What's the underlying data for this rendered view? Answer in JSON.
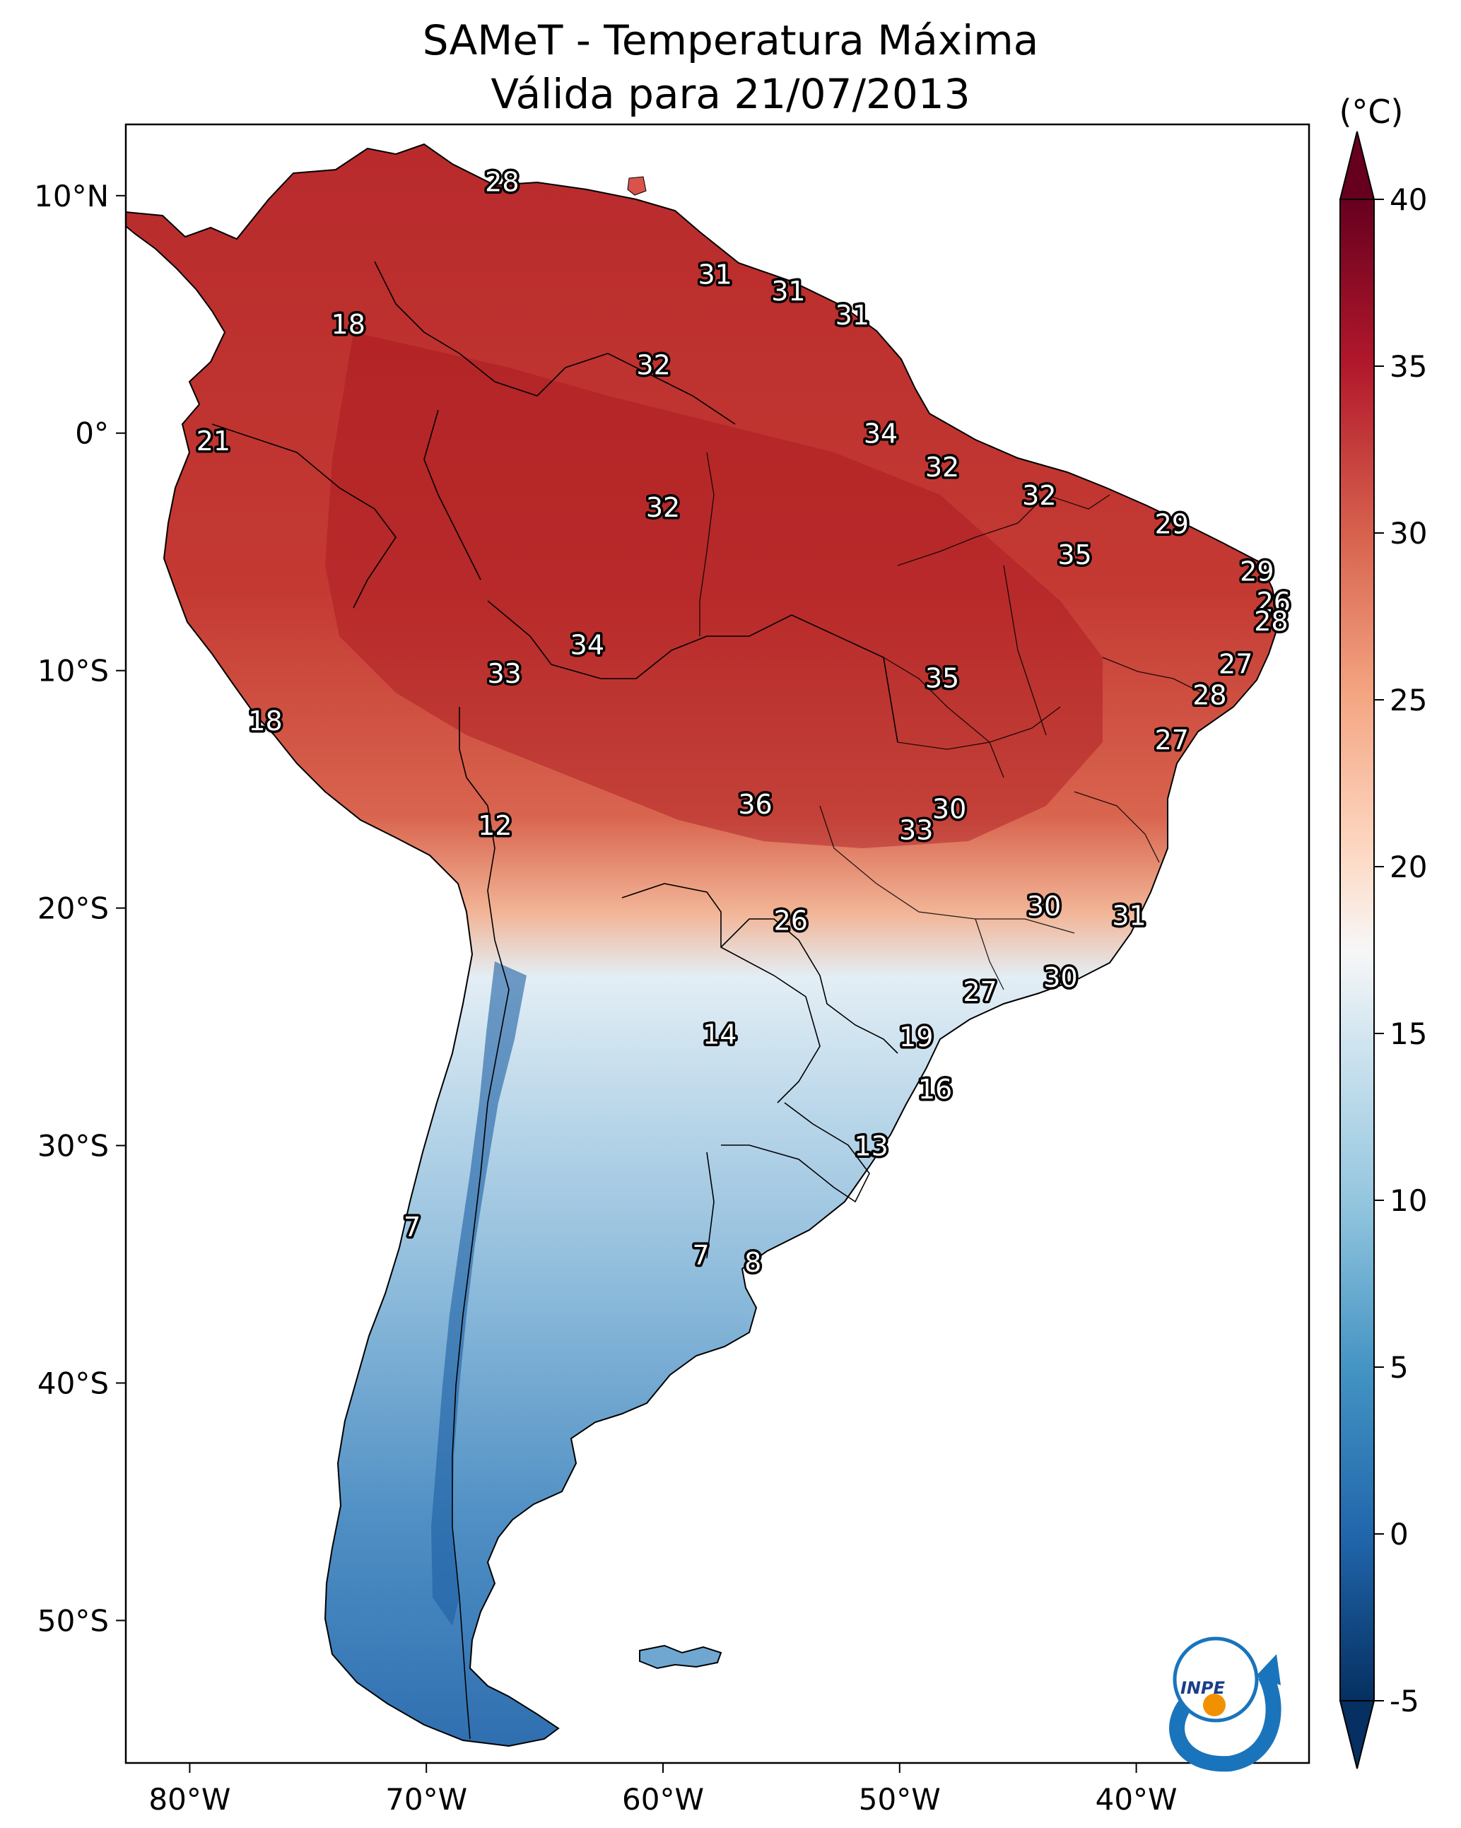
{
  "title": "SAMeT - Temperatura Máxima",
  "subtitle": "Válida para 21/07/2013",
  "colorbar": {
    "unit": "(°C)",
    "ticks": [
      -5,
      0,
      5,
      10,
      15,
      20,
      25,
      30,
      35,
      40
    ],
    "range": [
      -5,
      40
    ],
    "extend": "both",
    "colors": [
      "#053061",
      "#2166ac",
      "#4393c3",
      "#92c5de",
      "#d1e5f0",
      "#f7f7f7",
      "#fddbc7",
      "#f4a582",
      "#d6604d",
      "#b2182b",
      "#67001f"
    ]
  },
  "axes": {
    "lon_labels": [
      "80°W",
      "70°W",
      "60°W",
      "50°W",
      "40°W"
    ],
    "lon_values": [
      -80,
      -70,
      -60,
      -50,
      -40
    ],
    "lat_labels": [
      "10°N",
      "0°",
      "10°S",
      "20°S",
      "30°S",
      "40°S",
      "50°S"
    ],
    "lat_values": [
      10,
      0,
      -10,
      -20,
      -30,
      -40,
      -50
    ],
    "lon_range": [
      -82.7,
      -32.7
    ],
    "lat_range": [
      -56,
      13
    ]
  },
  "station_labels": [
    {
      "value": "28",
      "lon": -66.8,
      "lat": 10.6
    },
    {
      "value": "31",
      "lon": -57.8,
      "lat": 6.7
    },
    {
      "value": "31",
      "lon": -54.7,
      "lat": 6.0
    },
    {
      "value": "31",
      "lon": -52.0,
      "lat": 5.0
    },
    {
      "value": "18",
      "lon": -73.3,
      "lat": 4.6
    },
    {
      "value": "32",
      "lon": -60.4,
      "lat": 2.9
    },
    {
      "value": "21",
      "lon": -79.0,
      "lat": -0.3
    },
    {
      "value": "34",
      "lon": -50.8,
      "lat": 0.0
    },
    {
      "value": "32",
      "lon": -48.2,
      "lat": -1.4
    },
    {
      "value": "32",
      "lon": -60.0,
      "lat": -3.1
    },
    {
      "value": "32",
      "lon": -44.1,
      "lat": -2.6
    },
    {
      "value": "29",
      "lon": -38.5,
      "lat": -3.8
    },
    {
      "value": "35",
      "lon": -42.6,
      "lat": -5.1
    },
    {
      "value": "29",
      "lon": -34.9,
      "lat": -5.8
    },
    {
      "value": "26",
      "lon": -34.2,
      "lat": -7.1
    },
    {
      "value": "28",
      "lon": -34.3,
      "lat": -7.9
    },
    {
      "value": "34",
      "lon": -63.2,
      "lat": -8.9
    },
    {
      "value": "33",
      "lon": -66.7,
      "lat": -10.1
    },
    {
      "value": "35",
      "lon": -48.2,
      "lat": -10.3
    },
    {
      "value": "27",
      "lon": -35.8,
      "lat": -9.7
    },
    {
      "value": "28",
      "lon": -36.9,
      "lat": -11.0
    },
    {
      "value": "18",
      "lon": -76.8,
      "lat": -12.1
    },
    {
      "value": "27",
      "lon": -38.5,
      "lat": -12.9
    },
    {
      "value": "36",
      "lon": -56.1,
      "lat": -15.6
    },
    {
      "value": "30",
      "lon": -47.9,
      "lat": -15.8
    },
    {
      "value": "33",
      "lon": -49.3,
      "lat": -16.7
    },
    {
      "value": "12",
      "lon": -67.1,
      "lat": -16.5
    },
    {
      "value": "26",
      "lon": -54.6,
      "lat": -20.5
    },
    {
      "value": "30",
      "lon": -43.9,
      "lat": -19.9
    },
    {
      "value": "31",
      "lon": -40.3,
      "lat": -20.3
    },
    {
      "value": "30",
      "lon": -43.2,
      "lat": -22.9
    },
    {
      "value": "27",
      "lon": -46.6,
      "lat": -23.5
    },
    {
      "value": "14",
      "lon": -57.6,
      "lat": -25.3
    },
    {
      "value": "19",
      "lon": -49.3,
      "lat": -25.4
    },
    {
      "value": "16",
      "lon": -48.5,
      "lat": -27.6
    },
    {
      "value": "13",
      "lon": -51.2,
      "lat": -30.0
    },
    {
      "value": "7",
      "lon": -70.6,
      "lat": -33.4
    },
    {
      "value": "7",
      "lon": -58.4,
      "lat": -34.6
    },
    {
      "value": "8",
      "lon": -56.2,
      "lat": -34.9
    }
  ],
  "logo": {
    "text": "INPE"
  }
}
